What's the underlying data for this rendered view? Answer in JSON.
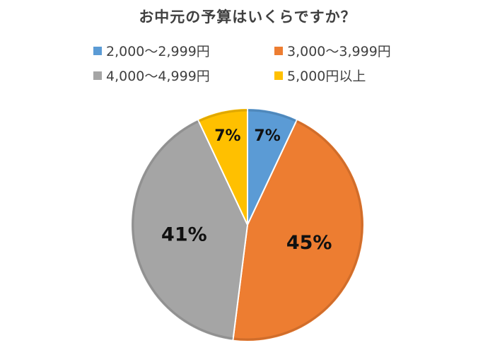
{
  "chart_data": {
    "type": "pie",
    "title": "お中元の予算はいくらですか？",
    "categories": [
      "2,000～2,999円",
      "3,000～3,999円",
      "4,000～4,999円",
      "5,000円以上"
    ],
    "values": [
      7,
      45,
      41,
      7
    ],
    "data_labels": [
      "7%",
      "45%",
      "41%",
      "7%"
    ],
    "colors": [
      "#5B9BD5",
      "#ED7D31",
      "#A5A5A5",
      "#FFC000"
    ],
    "legend_position": "top"
  }
}
